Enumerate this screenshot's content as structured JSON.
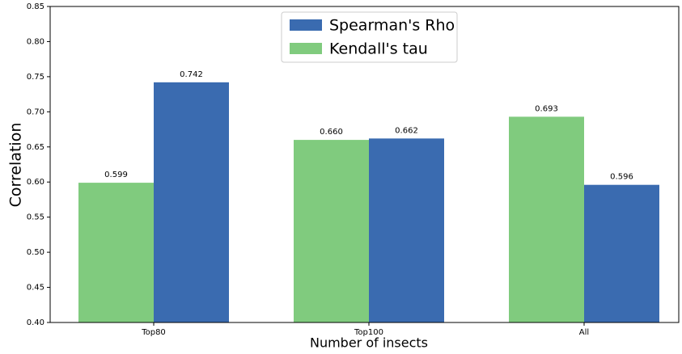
{
  "chart_data": {
    "type": "bar",
    "xlabel": "Number of insects",
    "ylabel": "Correlation",
    "categories": [
      "Top80",
      "Top100",
      "All"
    ],
    "series": [
      {
        "name": "Spearman's Rho",
        "color": "#3a6bb0",
        "values": [
          0.742,
          0.662,
          0.596
        ],
        "value_labels": [
          "0.742",
          "0.662",
          "0.596"
        ]
      },
      {
        "name": "Kendall's tau",
        "color": "#80cb7e",
        "values": [
          0.599,
          0.66,
          0.693
        ],
        "value_labels": [
          "0.599",
          "0.660",
          "0.693"
        ]
      }
    ],
    "ylim": [
      0.4,
      0.85
    ],
    "yticks": [
      {
        "value": 0.4,
        "label": "0.40"
      },
      {
        "value": 0.45,
        "label": "0.45"
      },
      {
        "value": 0.5,
        "label": "0.50"
      },
      {
        "value": 0.55,
        "label": "0.55"
      },
      {
        "value": 0.6,
        "label": "0.60"
      },
      {
        "value": 0.65,
        "label": "0.65"
      },
      {
        "value": 0.7,
        "label": "0.70"
      },
      {
        "value": 0.75,
        "label": "0.75"
      },
      {
        "value": 0.8,
        "label": "0.80"
      },
      {
        "value": 0.85,
        "label": "0.85"
      }
    ],
    "legend": "upper center"
  }
}
